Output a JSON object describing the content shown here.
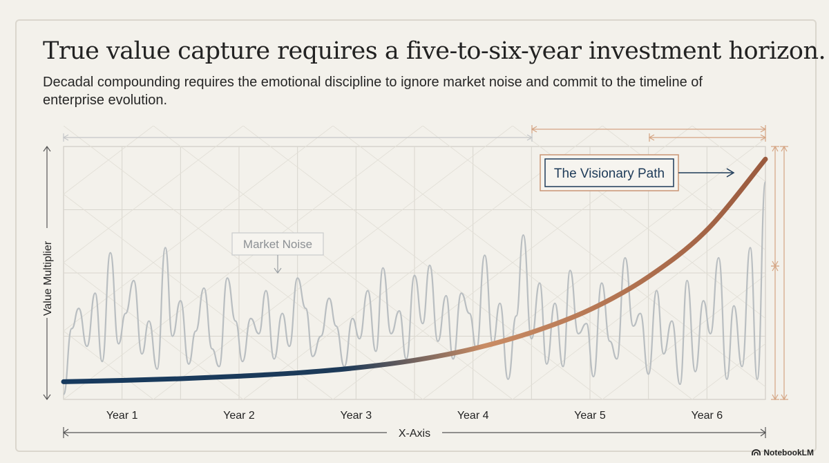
{
  "header": {
    "title": "True value capture requires a five-to-six-year investment horizon.",
    "subtitle": "Decadal compounding requires the emotional discipline to ignore market noise and commit to the timeline of enterprise evolution."
  },
  "chart_data": {
    "type": "line",
    "title": "True value capture requires a five-to-six-year investment horizon.",
    "xlabel": "X-Axis",
    "ylabel": "Value Multiplier",
    "categories": [
      "Year 1",
      "Year 2",
      "Year 3",
      "Year 4",
      "Year 5",
      "Year 6"
    ],
    "xlim": [
      0.5,
      6.5
    ],
    "ylim": [
      0,
      10
    ],
    "grid": true,
    "annotations": [
      {
        "text": "Market Noise",
        "series": "Market Noise"
      },
      {
        "text": "The Visionary Path",
        "series": "The Visionary Path"
      }
    ],
    "series": [
      {
        "name": "The Visionary Path",
        "style": "smooth-gradient",
        "colors": [
          "#173a5e",
          "#c98c64",
          "#9a5a3e"
        ],
        "x": [
          0.5,
          1.0,
          1.5,
          2.0,
          2.5,
          3.0,
          3.5,
          4.0,
          4.5,
          5.0,
          5.5,
          6.0,
          6.5
        ],
        "y": [
          0.7,
          0.75,
          0.82,
          0.92,
          1.05,
          1.25,
          1.55,
          2.0,
          2.65,
          3.55,
          4.85,
          6.7,
          9.5
        ]
      },
      {
        "name": "Market Noise",
        "style": "jagged",
        "color": "#b9bec1",
        "x": [
          0.5,
          0.57,
          0.63,
          0.7,
          0.77,
          0.83,
          0.9,
          0.97,
          1.03,
          1.1,
          1.17,
          1.23,
          1.3,
          1.37,
          1.43,
          1.5,
          1.57,
          1.63,
          1.7,
          1.77,
          1.83,
          1.9,
          1.97,
          2.03,
          2.1,
          2.17,
          2.23,
          2.3,
          2.37,
          2.43,
          2.5,
          2.57,
          2.63,
          2.7,
          2.77,
          2.83,
          2.9,
          2.97,
          3.03,
          3.1,
          3.17,
          3.23,
          3.3,
          3.37,
          3.43,
          3.5,
          3.57,
          3.63,
          3.7,
          3.77,
          3.83,
          3.9,
          3.97,
          4.03,
          4.1,
          4.17,
          4.23,
          4.3,
          4.37,
          4.43,
          4.5,
          4.57,
          4.63,
          4.7,
          4.77,
          4.83,
          4.9,
          4.97,
          5.03,
          5.1,
          5.17,
          5.23,
          5.3,
          5.37,
          5.43,
          5.5,
          5.57,
          5.63,
          5.7,
          5.77,
          5.83,
          5.9,
          5.97,
          6.03,
          6.1,
          6.17,
          6.23,
          6.3,
          6.37,
          6.43,
          6.5
        ],
        "y": [
          0.2,
          2.8,
          3.6,
          2.1,
          4.2,
          1.5,
          5.8,
          2.2,
          3.4,
          4.7,
          1.8,
          3.1,
          1.2,
          6.0,
          2.5,
          3.9,
          1.4,
          2.7,
          4.4,
          2.0,
          1.3,
          4.8,
          3.1,
          1.5,
          3.2,
          2.6,
          4.3,
          1.6,
          3.4,
          2.1,
          4.8,
          3.6,
          1.7,
          2.5,
          4.0,
          2.9,
          1.3,
          3.2,
          2.4,
          4.3,
          1.9,
          5.2,
          2.6,
          3.5,
          1.6,
          4.9,
          3.0,
          5.3,
          2.3,
          4.1,
          1.6,
          4.2,
          3.4,
          2.0,
          5.7,
          2.2,
          3.8,
          0.8,
          3.3,
          6.5,
          2.4,
          4.6,
          1.4,
          3.8,
          1.3,
          5.1,
          2.6,
          3.0,
          0.9,
          4.6,
          2.3,
          1.6,
          5.6,
          2.9,
          3.4,
          1.0,
          4.3,
          1.8,
          3.1,
          0.6,
          4.7,
          1.1,
          3.9,
          2.6,
          5.6,
          0.8,
          3.7,
          1.3,
          6.0,
          0.8,
          8.6
        ]
      }
    ]
  },
  "brand": {
    "name": "NotebookLM",
    "icon": "notebooklm-logo-icon"
  }
}
